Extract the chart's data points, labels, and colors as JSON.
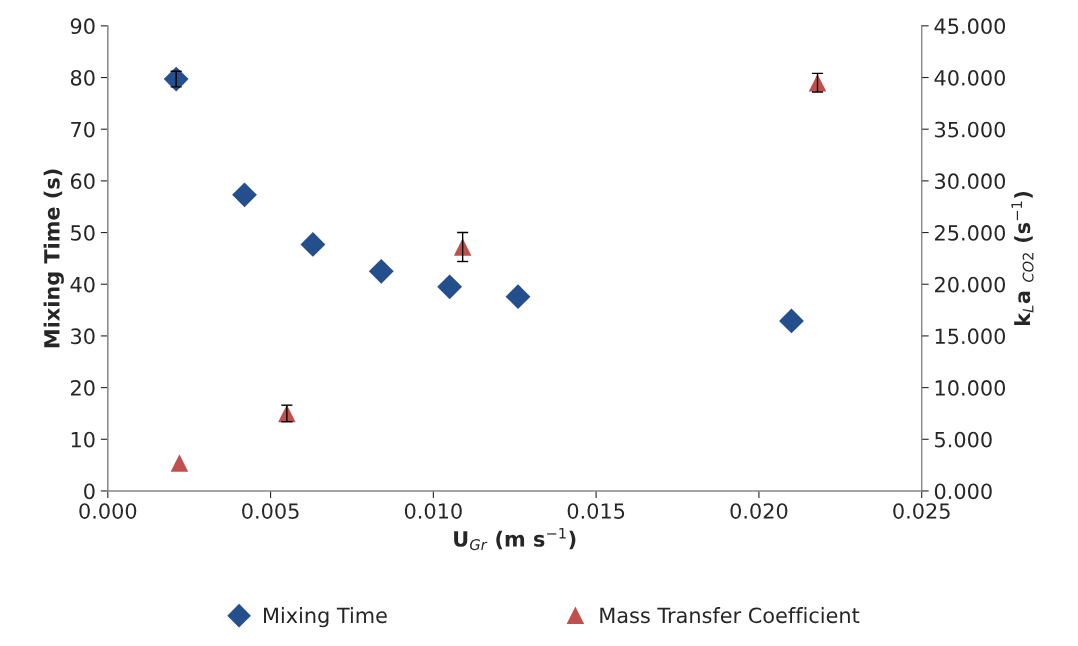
{
  "chart_data": {
    "type": "scatter",
    "xlabel": "U$_{Gr}$ (m s$^{−1}$)",
    "ylabel": "Mixing Time (s)",
    "y2label": "k$_{L}$a $_{CO2}$ (s$^{−1}$)",
    "xlim": [
      0,
      0.025
    ],
    "xticks": [
      {
        "value": 0,
        "label": "0.000"
      },
      {
        "value": 0.005,
        "label": "0.005"
      },
      {
        "value": 0.01,
        "label": "0.010"
      },
      {
        "value": 0.015,
        "label": "0.015"
      },
      {
        "value": 0.02,
        "label": "0.020"
      },
      {
        "value": 0.025,
        "label": "0.025"
      }
    ],
    "ylim": [
      0,
      90
    ],
    "yticks": [
      0,
      10,
      20,
      30,
      40,
      50,
      60,
      70,
      80,
      90
    ],
    "y2lim": [
      0,
      45
    ],
    "y2ticks": [
      {
        "value": 0,
        "label": "0.000"
      },
      {
        "value": 5,
        "label": "5.000"
      },
      {
        "value": 10,
        "label": "10.000"
      },
      {
        "value": 15,
        "label": "15.000"
      },
      {
        "value": 20,
        "label": "20.000"
      },
      {
        "value": 25,
        "label": "25.000"
      },
      {
        "value": 30,
        "label": "30.000"
      },
      {
        "value": 35,
        "label": "35.000"
      },
      {
        "value": 40,
        "label": "40.000"
      },
      {
        "value": 45,
        "label": "45.000"
      }
    ],
    "grid": false,
    "legend": "bottom",
    "series": [
      {
        "name": "Mixing Time",
        "color": "#254f8c",
        "marker": "diamond",
        "x": [
          0.0021,
          0.0042,
          0.0063,
          0.0084,
          0.0105,
          0.0126,
          0.021
        ],
        "values": [
          79.7,
          57.3,
          47.7,
          42.5,
          39.5,
          37.6,
          32.9
        ],
        "errors": [
          1.5,
          null,
          null,
          null,
          null,
          null,
          null
        ]
      },
      {
        "name": "Mass Transfer Coefficient",
        "color": "#c0504d",
        "marker": "triangle",
        "axis": "y2",
        "x": [
          0.0022,
          0.0055,
          0.0109,
          0.0218
        ],
        "values": [
          2.7,
          7.5,
          23.6,
          39.5
        ],
        "errors": [
          null,
          0.8,
          1.4,
          0.9
        ]
      }
    ]
  }
}
